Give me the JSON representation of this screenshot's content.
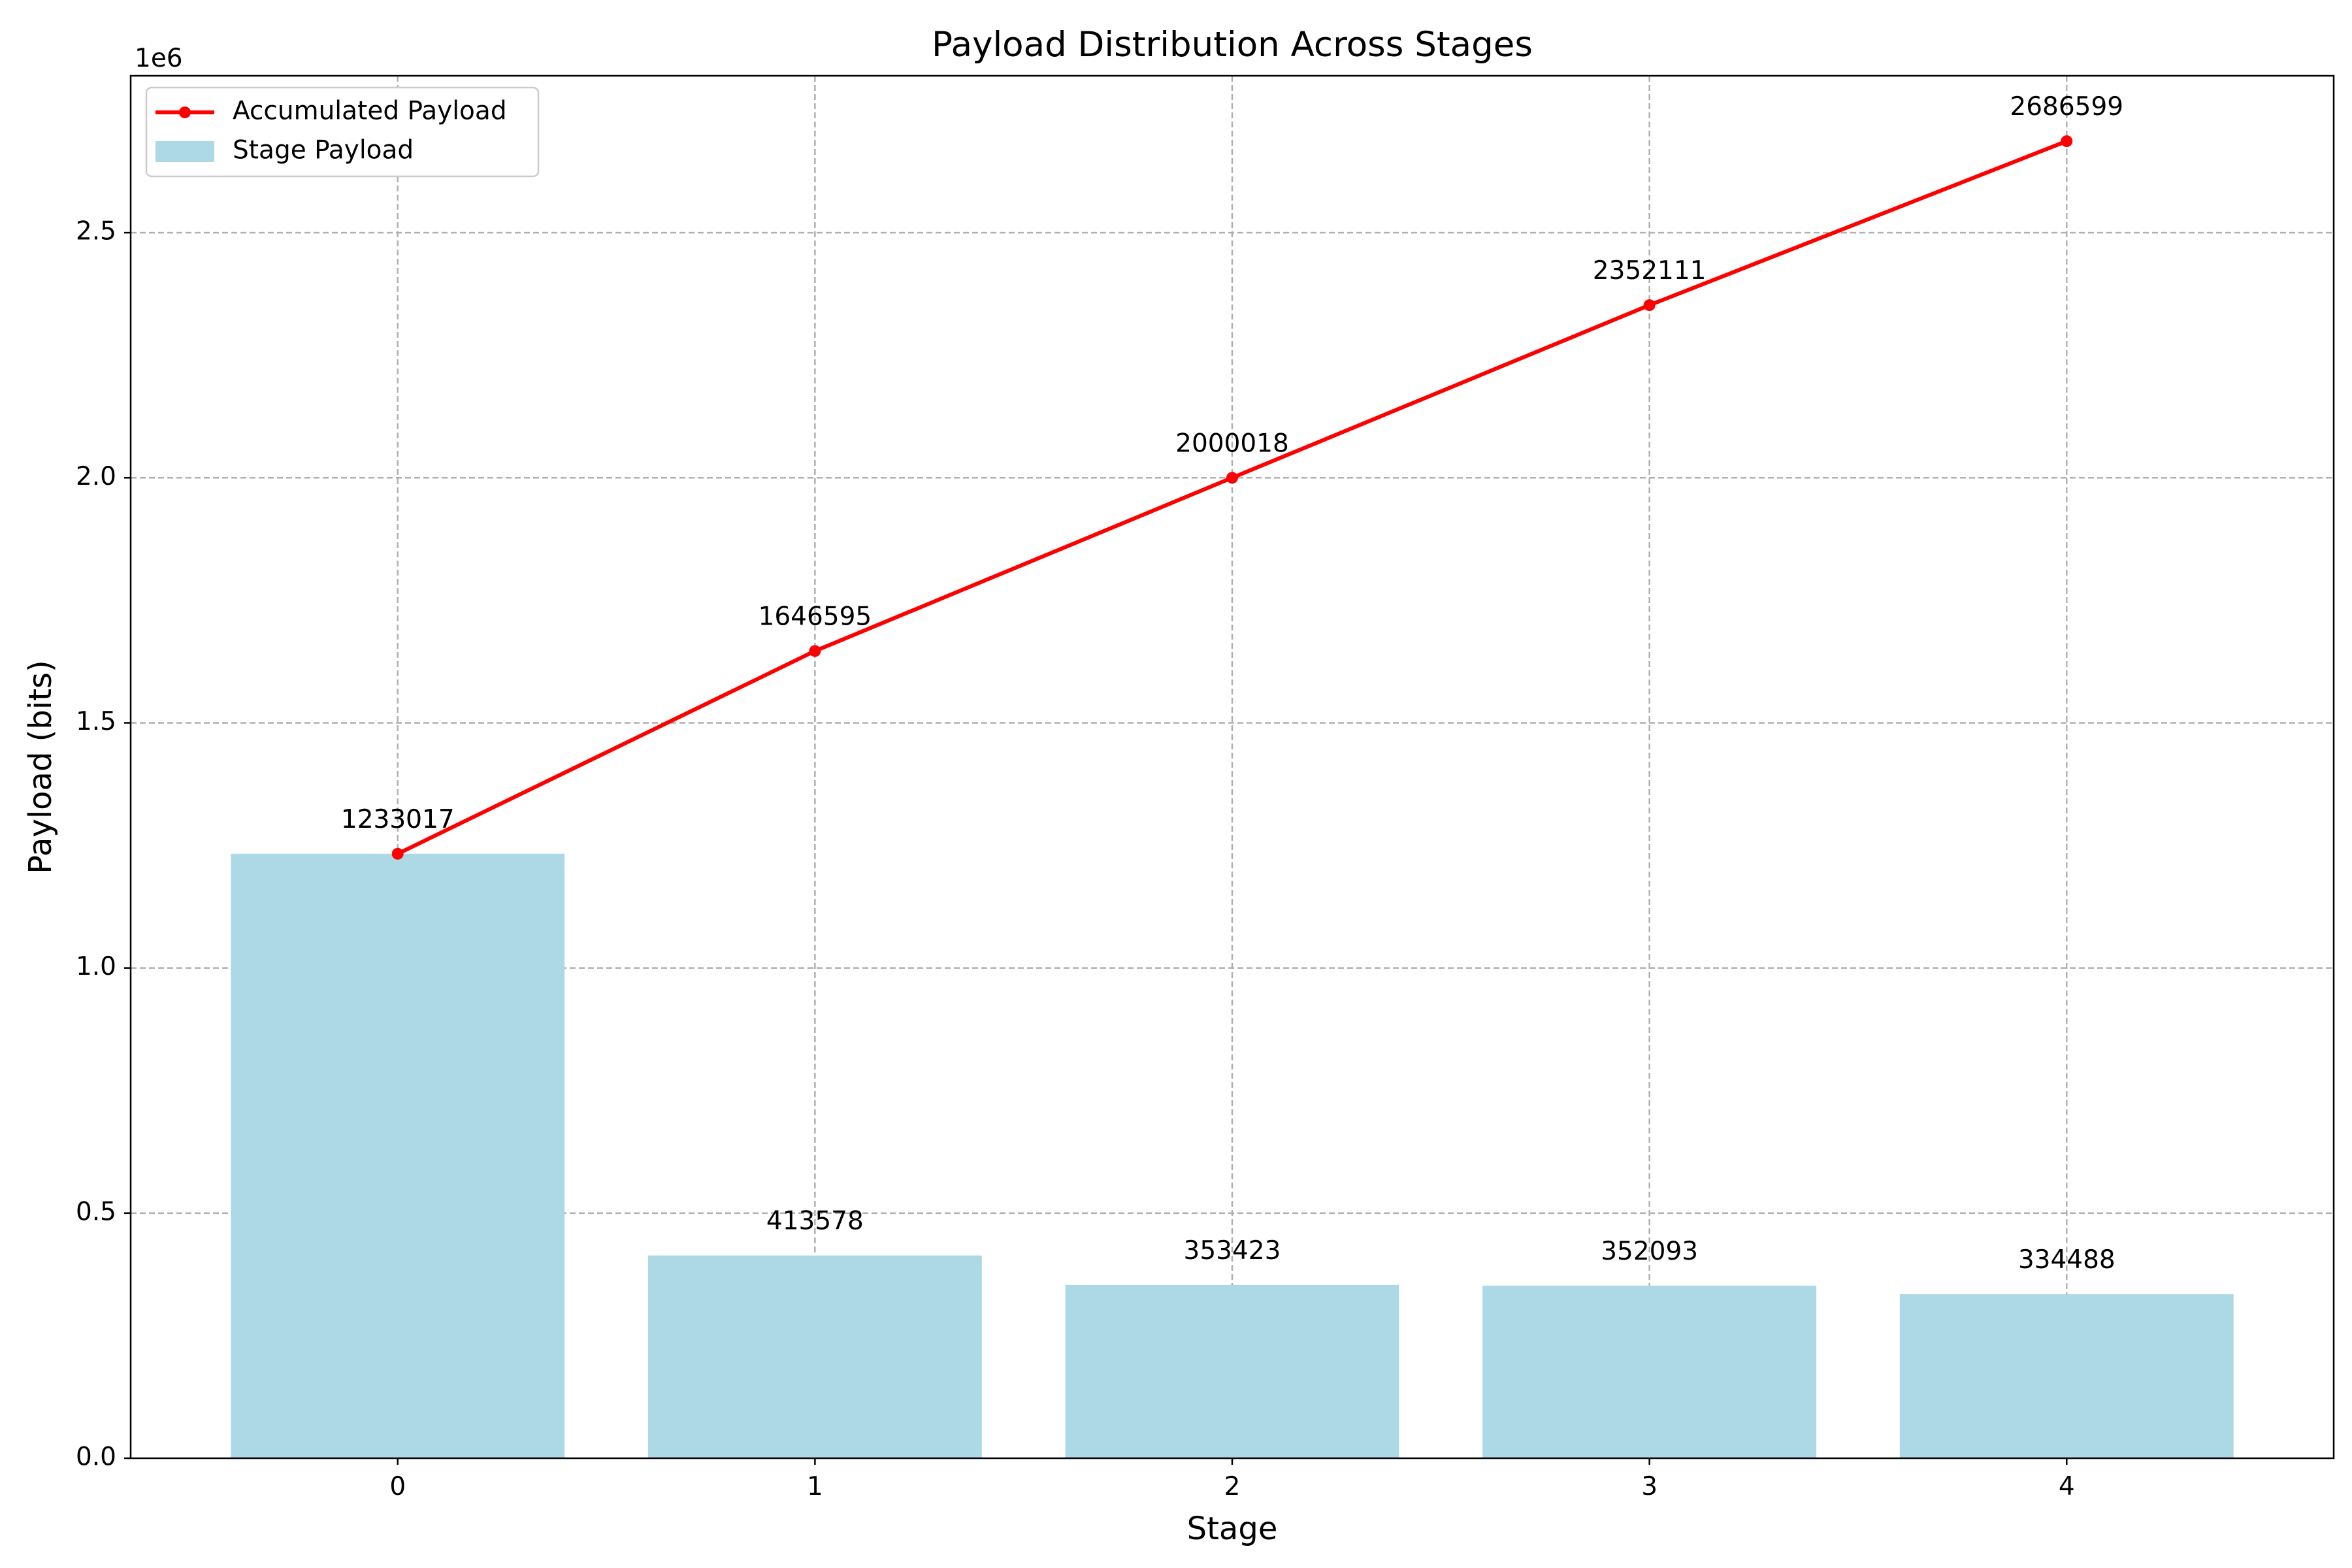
{
  "chart_data": {
    "type": "bar",
    "title": "Payload Distribution Across Stages",
    "xlabel": "Stage",
    "ylabel": "Payload (bits)",
    "y_offset_label": "1e6",
    "categories": [
      "0",
      "1",
      "2",
      "3",
      "4"
    ],
    "ylim": [
      0,
      2820000
    ],
    "yticks": [
      0,
      500000,
      1000000,
      1500000,
      2000000,
      2500000
    ],
    "ytick_labels": [
      "0.0",
      "0.5",
      "1.0",
      "1.5",
      "2.0",
      "2.5"
    ],
    "grid": true,
    "legend_position": "top-left",
    "series": [
      {
        "name": "Stage Payload",
        "type": "bar",
        "color": "#add8e6",
        "values": [
          1233017,
          413578,
          353423,
          352093,
          334488
        ],
        "labels": [
          "1233017",
          "413578",
          "353423",
          "352093",
          "334488"
        ]
      },
      {
        "name": "Accumulated Payload",
        "type": "line",
        "color": "#ff0000",
        "marker": "circle",
        "values": [
          1233017,
          1646595,
          2000018,
          2352111,
          2686599
        ],
        "labels": [
          "1233017",
          "1646595",
          "2000018",
          "2352111",
          "2686599"
        ]
      }
    ]
  }
}
